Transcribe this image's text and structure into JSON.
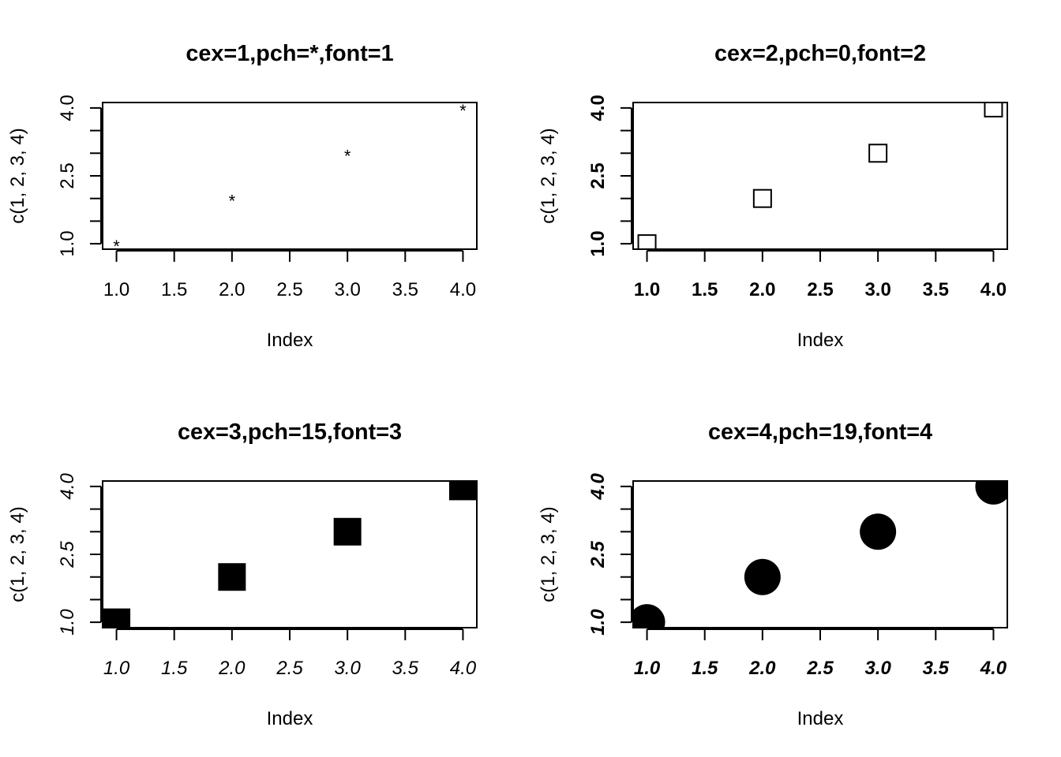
{
  "chart_data": [
    {
      "type": "scatter",
      "title": "cex=1,pch=*,font=1",
      "xlabel": "Index",
      "ylabel": "c(1, 2, 3, 4)",
      "x": [
        1,
        2,
        3,
        4
      ],
      "y": [
        1,
        2,
        3,
        4
      ],
      "xlim": [
        1,
        4
      ],
      "ylim": [
        1,
        4
      ],
      "xticks": [
        "1.0",
        "1.5",
        "2.0",
        "2.5",
        "3.0",
        "3.5",
        "4.0"
      ],
      "yticks": [
        "1.0",
        "2.5",
        "4.0"
      ],
      "marker": "asterisk",
      "cex": 1,
      "font_style": "plain",
      "grid": false
    },
    {
      "type": "scatter",
      "title": "cex=2,pch=0,font=2",
      "xlabel": "Index",
      "ylabel": "c(1, 2, 3, 4)",
      "x": [
        1,
        2,
        3,
        4
      ],
      "y": [
        1,
        2,
        3,
        4
      ],
      "xlim": [
        1,
        4
      ],
      "ylim": [
        1,
        4
      ],
      "xticks": [
        "1.0",
        "1.5",
        "2.0",
        "2.5",
        "3.0",
        "3.5",
        "4.0"
      ],
      "yticks": [
        "1.0",
        "2.5",
        "4.0"
      ],
      "marker": "open-square",
      "cex": 2,
      "font_style": "bold",
      "grid": false
    },
    {
      "type": "scatter",
      "title": "cex=3,pch=15,font=3",
      "xlabel": "Index",
      "ylabel": "c(1, 2, 3, 4)",
      "x": [
        1,
        2,
        3,
        4
      ],
      "y": [
        1,
        2,
        3,
        4
      ],
      "xlim": [
        1,
        4
      ],
      "ylim": [
        1,
        4
      ],
      "xticks": [
        "1.0",
        "1.5",
        "2.0",
        "2.5",
        "3.0",
        "3.5",
        "4.0"
      ],
      "yticks": [
        "1.0",
        "2.5",
        "4.0"
      ],
      "marker": "filled-square",
      "cex": 3,
      "font_style": "italic",
      "grid": false
    },
    {
      "type": "scatter",
      "title": "cex=4,pch=19,font=4",
      "xlabel": "Index",
      "ylabel": "c(1, 2, 3, 4)",
      "x": [
        1,
        2,
        3,
        4
      ],
      "y": [
        1,
        2,
        3,
        4
      ],
      "xlim": [
        1,
        4
      ],
      "ylim": [
        1,
        4
      ],
      "xticks": [
        "1.0",
        "1.5",
        "2.0",
        "2.5",
        "3.0",
        "3.5",
        "4.0"
      ],
      "yticks": [
        "1.0",
        "2.5",
        "4.0"
      ],
      "marker": "filled-circle",
      "cex": 4,
      "font_style": "bold-italic",
      "grid": false
    }
  ]
}
